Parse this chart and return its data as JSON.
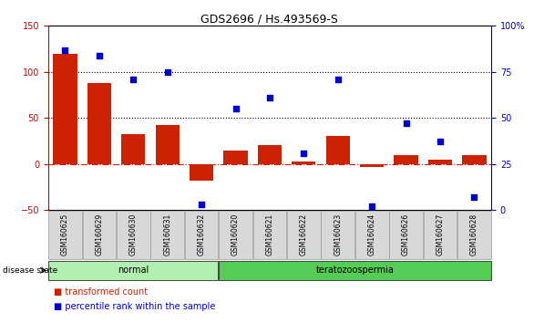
{
  "title": "GDS2696 / Hs.493569-S",
  "samples": [
    "GSM160625",
    "GSM160629",
    "GSM160630",
    "GSM160631",
    "GSM160632",
    "GSM160620",
    "GSM160621",
    "GSM160622",
    "GSM160623",
    "GSM160624",
    "GSM160626",
    "GSM160627",
    "GSM160628"
  ],
  "red_bars": [
    120,
    88,
    32,
    42,
    -18,
    15,
    20,
    3,
    30,
    -3,
    10,
    5,
    10
  ],
  "blue_dots_pct": [
    87,
    84,
    71,
    75,
    3,
    55,
    61,
    31,
    71,
    2,
    47,
    37,
    7
  ],
  "groups": [
    {
      "label": "normal",
      "start": 0,
      "end": 5,
      "color": "#b2f0b2"
    },
    {
      "label": "teratozoospermia",
      "start": 5,
      "end": 13,
      "color": "#55cc55"
    }
  ],
  "left_ylim": [
    -50,
    150
  ],
  "left_yticks": [
    -50,
    0,
    50,
    100,
    150
  ],
  "right_ylim": [
    0,
    100
  ],
  "right_yticks": [
    0,
    25,
    50,
    75,
    100
  ],
  "left_tick_color": "#cc0000",
  "right_tick_color": "#0000cc",
  "bar_color": "#cc2200",
  "dot_color": "#0000cc",
  "legend_items": [
    "transformed count",
    "percentile rank within the sample"
  ],
  "legend_colors": [
    "#cc2200",
    "#0000cc"
  ],
  "bar_width": 0.7
}
